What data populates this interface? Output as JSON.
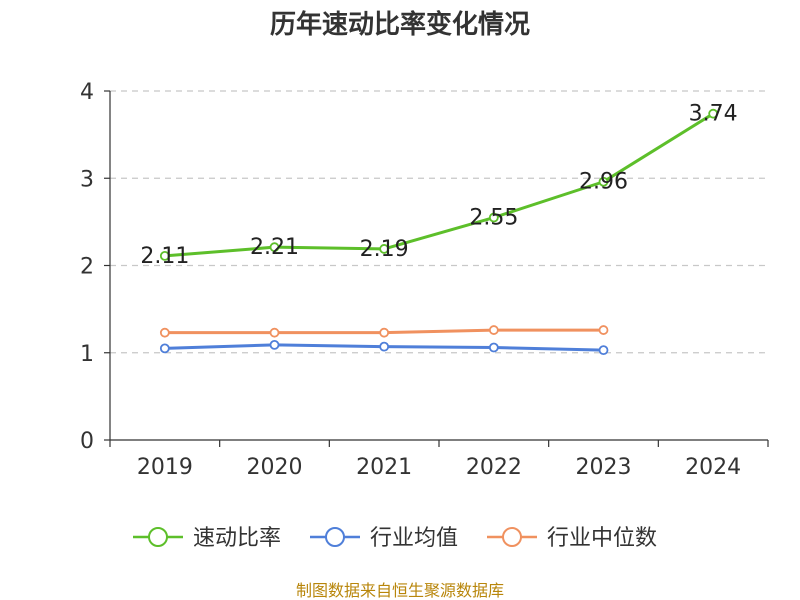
{
  "chart_data": {
    "type": "line",
    "title": "历年速动比率变化情况",
    "categories": [
      "2019",
      "2020",
      "2021",
      "2022",
      "2023",
      "2024"
    ],
    "y_ticks": [
      "0",
      "1",
      "2",
      "3",
      "4"
    ],
    "ylim": [
      0,
      4
    ],
    "grid": "horizontal-dashed",
    "legend_position": "bottom",
    "series": [
      {
        "name": "速动比率",
        "color": "#5dbf2a",
        "values": [
          2.11,
          2.21,
          2.19,
          2.55,
          2.96,
          3.74
        ],
        "labels": [
          "2.11",
          "2.21",
          "2.19",
          "2.55",
          "2.96",
          "3.74"
        ]
      },
      {
        "name": "行业均值",
        "color": "#4f7fd9",
        "values": [
          1.05,
          1.09,
          1.07,
          1.06,
          1.03,
          null
        ]
      },
      {
        "name": "行业中位数",
        "color": "#f0915f",
        "values": [
          1.23,
          1.23,
          1.23,
          1.26,
          1.26,
          null
        ]
      }
    ],
    "source": "制图数据来自恒生聚源数据库"
  }
}
